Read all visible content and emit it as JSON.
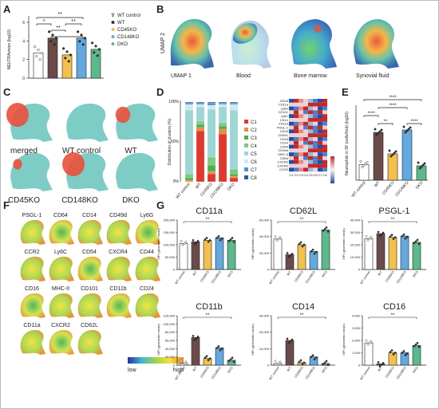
{
  "panels": {
    "A": "A",
    "B": "B",
    "C": "C",
    "D": "D",
    "E": "E",
    "F": "F",
    "G": "G"
  },
  "colors": {
    "wt_control": "#ffffff",
    "wt": "#6b4a4a",
    "cd45ko": "#f2c04b",
    "cd148ko": "#63a8df",
    "dko": "#5bb98c",
    "umap_red": "#e9503a",
    "umap_teal": "#6fc8c0"
  },
  "legend_A": [
    {
      "label": "WT control",
      "marker": "triangle"
    },
    {
      "label": "WT",
      "marker": "dot"
    },
    {
      "label": "CD45KO",
      "marker": "dot"
    },
    {
      "label": "CD148KO",
      "marker": "dot"
    },
    {
      "label": "DKO",
      "marker": "dot"
    }
  ],
  "sig": {
    "double": "**",
    "single": "*"
  },
  "panel_B": {
    "ylabel": "UMAP 2",
    "captions": [
      "UMAP 1",
      "Blood",
      "Bone marrow",
      "Synovial fluid"
    ]
  },
  "panel_C": {
    "captions": [
      "merged",
      "WT control",
      "WT",
      "CD45KO",
      "CD148KO",
      "DKO"
    ]
  },
  "panel_D": {
    "clusters": [
      "C1",
      "C2",
      "C3",
      "C4",
      "C5",
      "C6",
      "C7",
      "C8"
    ],
    "heat_rows": [
      "CD18",
      "CD11a",
      "Ly6G",
      "CD101",
      "Ly6C",
      "CD14",
      "CD11b",
      "PSGL-1",
      "CD44",
      "CD62L",
      "CD16",
      "CD24",
      "CD54",
      "CD49d",
      "MHC-II",
      "CD64",
      "CXCR2",
      "CXCR4",
      "CCR2"
    ]
  },
  "panel_E": {
    "sig_top": "****"
  },
  "panel_F": {
    "markers": [
      "PSGL-1",
      "CD64",
      "CD14",
      "CD49d",
      "Ly6G",
      "CCR2",
      "Ly6C",
      "CD54",
      "CXCR4",
      "CD44",
      "CD16",
      "MHC-II",
      "CD101",
      "CD11b",
      "CD24",
      "CD11a",
      "CXCR2",
      "CD62L"
    ],
    "scale_low": "low",
    "scale_high": "high"
  },
  "panel_G": {
    "ylabel": "MFI (geometric mean)"
  },
  "chart_data": [
    {
      "type": "bar",
      "panel": "A",
      "ylabel": "NEUTRAvision (log10)",
      "categories": [
        "WT control",
        "WT",
        "CD45KO",
        "CD148KO",
        "DKO"
      ],
      "values": [
        2.7,
        4.3,
        2.5,
        4.3,
        3.1
      ],
      "ylim": [
        0,
        6
      ],
      "yticks": [
        0,
        2,
        4,
        6
      ]
    },
    {
      "type": "bar",
      "panel": "D",
      "ylabel": "Distribution of clusters (%)",
      "stacked": true,
      "categories": [
        "WT control",
        "WT",
        "CD45KO",
        "CD148KO",
        "DKO"
      ],
      "yticks": [
        "0%",
        "50%",
        "100%"
      ],
      "series": [
        {
          "name": "C1",
          "values": [
            0,
            64,
            10,
            60,
            5
          ]
        },
        {
          "name": "C2",
          "values": [
            2,
            4,
            3,
            6,
            2
          ]
        },
        {
          "name": "C3",
          "values": [
            3,
            4,
            8,
            4,
            3
          ]
        },
        {
          "name": "C4",
          "values": [
            5,
            4,
            10,
            4,
            6
          ]
        },
        {
          "name": "C5",
          "values": [
            80,
            18,
            60,
            20,
            74
          ]
        },
        {
          "name": "C6",
          "values": [
            7,
            3,
            5,
            3,
            7
          ]
        },
        {
          "name": "C7",
          "values": [
            2,
            2,
            3,
            2,
            2
          ]
        },
        {
          "name": "C8",
          "values": [
            1,
            1,
            1,
            1,
            1
          ]
        }
      ]
    },
    {
      "type": "bar",
      "panel": "E",
      "ylabel": "Neutrophils in SF (cells/foot) (log10)",
      "categories": [
        "WT control",
        "WT",
        "CD45KO",
        "CD148KO",
        "DKO"
      ],
      "values": [
        1.3,
        4.0,
        2.2,
        4.2,
        1.2
      ],
      "ylim": [
        0,
        6
      ]
    },
    {
      "type": "bar",
      "panel": "G",
      "title": "CD11a",
      "categories": [
        "WT control",
        "WT",
        "CD45KO",
        "CD148KO",
        "DKO"
      ],
      "values": [
        105000,
        112000,
        118000,
        128000,
        118000
      ],
      "ylim": [
        0,
        200000
      ],
      "yticks": [
        "0",
        "50,000",
        "100,000",
        "150,000",
        "200,000"
      ]
    },
    {
      "type": "bar",
      "panel": "G",
      "title": "CD62L",
      "categories": [
        "WT control",
        "WT",
        "CD45KO",
        "CD148KO",
        "DKO"
      ],
      "values": [
        37000,
        18000,
        30000,
        22000,
        48000
      ],
      "ylim": [
        0,
        60000
      ],
      "yticks": [
        "0",
        "20,000",
        "40,000",
        "60,000"
      ]
    },
    {
      "type": "bar",
      "panel": "G",
      "title": "PSGL-1",
      "categories": [
        "WT control",
        "WT",
        "CD45KO",
        "CD148KO",
        "DKO"
      ],
      "values": [
        25000,
        29000,
        26000,
        27000,
        22000
      ],
      "ylim": [
        0,
        40000
      ],
      "yticks": [
        "0",
        "10,000",
        "20,000",
        "30,000",
        "40,000"
      ]
    },
    {
      "type": "bar",
      "panel": "G",
      "title": "CD11b",
      "categories": [
        "WT control",
        "WT",
        "CD45KO",
        "CD148KO",
        "DKO"
      ],
      "values": [
        4000,
        67000,
        16000,
        42000,
        12000
      ],
      "ylim": [
        0,
        120000
      ],
      "yticks": [
        "0",
        "20,000",
        "40,000",
        "60,000",
        "80,000",
        "100,000",
        "120,000"
      ]
    },
    {
      "type": "bar",
      "panel": "G",
      "title": "CD14",
      "categories": [
        "WT control",
        "WT",
        "CD45KO",
        "CD148KO",
        "DKO"
      ],
      "values": [
        1000,
        15000,
        1500,
        5000,
        1000
      ],
      "ylim": [
        0,
        30000
      ],
      "yticks": [
        "0",
        "10,000",
        "20,000",
        "30,000"
      ]
    },
    {
      "type": "bar",
      "panel": "G",
      "title": "CD16",
      "categories": [
        "WT control",
        "WT",
        "CD45KO",
        "CD148KO",
        "DKO"
      ],
      "values": [
        1800,
        100,
        1000,
        1000,
        1600
      ],
      "ylim": [
        0,
        4000
      ],
      "yticks": [
        "0",
        "1,000",
        "2,000",
        "3,000",
        "4,000"
      ]
    }
  ]
}
